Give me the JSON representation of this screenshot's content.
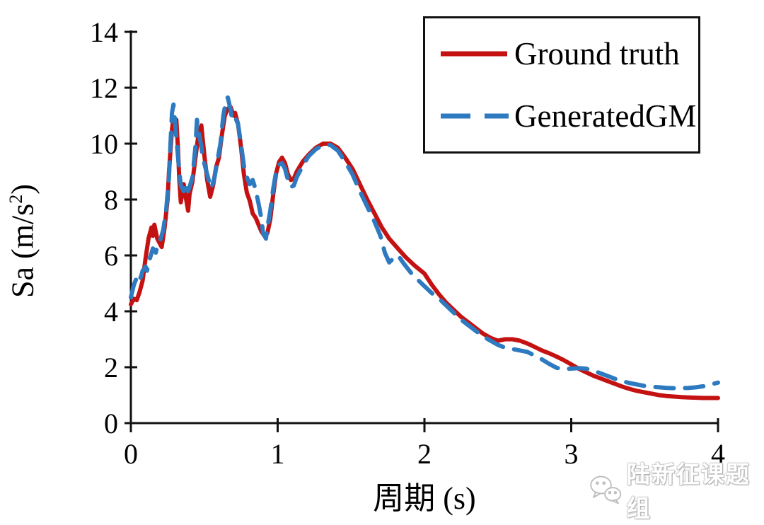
{
  "figure": {
    "background": "#ffffff"
  },
  "axes": {
    "x_label": "周期 (s)",
    "y_label_prefix": "Sa (m/s",
    "y_label_sup": "2",
    "y_label_suffix": ")",
    "y_label_full": "Sa (m/s²)"
  },
  "legend": {
    "entries": [
      {
        "label": "Ground truth",
        "color": "#c41212",
        "dash": "solid"
      },
      {
        "label": "GeneratedGM",
        "color": "#2d7ac0",
        "dash": "dashed"
      }
    ]
  },
  "watermark": {
    "icon": "wechat-icon",
    "text": "陆新征课题组"
  },
  "chart_data": {
    "type": "line",
    "title": "",
    "xlabel": "周期 (s)",
    "ylabel": "Sa (m/s²)",
    "xlim": [
      0,
      4
    ],
    "ylim": [
      0,
      14
    ],
    "xticks": [
      0,
      1,
      2,
      3,
      4
    ],
    "yticks": [
      0,
      2,
      4,
      6,
      8,
      10,
      12,
      14
    ],
    "grid": false,
    "legend_position": "top-right",
    "series": [
      {
        "name": "Ground truth",
        "color": "#c41212",
        "line_style": "solid",
        "line_width": 6,
        "points": [
          [
            0,
            4.25
          ],
          [
            0.02,
            4.45
          ],
          [
            0.04,
            4.4
          ],
          [
            0.06,
            4.7
          ],
          [
            0.08,
            5.1
          ],
          [
            0.1,
            5.9
          ],
          [
            0.12,
            6.6
          ],
          [
            0.14,
            7.0
          ],
          [
            0.15,
            6.7
          ],
          [
            0.16,
            7.1
          ],
          [
            0.18,
            6.6
          ],
          [
            0.2,
            6.4
          ],
          [
            0.21,
            6.3
          ],
          [
            0.23,
            7.0
          ],
          [
            0.25,
            8.0
          ],
          [
            0.26,
            9.0
          ],
          [
            0.28,
            10.5
          ],
          [
            0.29,
            10.9
          ],
          [
            0.3,
            10.5
          ],
          [
            0.31,
            10.85
          ],
          [
            0.32,
            9.9
          ],
          [
            0.33,
            8.7
          ],
          [
            0.34,
            7.9
          ],
          [
            0.36,
            8.55
          ],
          [
            0.37,
            8.2
          ],
          [
            0.39,
            7.6
          ],
          [
            0.4,
            8.2
          ],
          [
            0.42,
            8.65
          ],
          [
            0.44,
            9.5
          ],
          [
            0.46,
            10.3
          ],
          [
            0.48,
            10.65
          ],
          [
            0.5,
            9.6
          ],
          [
            0.52,
            8.7
          ],
          [
            0.54,
            8.1
          ],
          [
            0.56,
            8.5
          ],
          [
            0.58,
            9.15
          ],
          [
            0.6,
            9.5
          ],
          [
            0.62,
            10.3
          ],
          [
            0.64,
            11.0
          ],
          [
            0.66,
            11.25
          ],
          [
            0.68,
            11.3
          ],
          [
            0.7,
            11.0
          ],
          [
            0.71,
            11.1
          ],
          [
            0.73,
            10.7
          ],
          [
            0.75,
            9.9
          ],
          [
            0.77,
            8.9
          ],
          [
            0.79,
            8.25
          ],
          [
            0.81,
            7.95
          ],
          [
            0.83,
            7.5
          ],
          [
            0.85,
            7.35
          ],
          [
            0.87,
            7.1
          ],
          [
            0.89,
            6.85
          ],
          [
            0.91,
            6.7
          ],
          [
            0.93,
            6.8
          ],
          [
            0.95,
            7.3
          ],
          [
            0.97,
            8.2
          ],
          [
            0.99,
            8.95
          ],
          [
            1.01,
            9.35
          ],
          [
            1.03,
            9.5
          ],
          [
            1.05,
            9.3
          ],
          [
            1.07,
            8.9
          ],
          [
            1.09,
            8.7
          ],
          [
            1.11,
            8.75
          ],
          [
            1.13,
            9.0
          ],
          [
            1.17,
            9.35
          ],
          [
            1.21,
            9.6
          ],
          [
            1.26,
            9.85
          ],
          [
            1.31,
            10.0
          ],
          [
            1.36,
            10.0
          ],
          [
            1.41,
            9.85
          ],
          [
            1.46,
            9.5
          ],
          [
            1.51,
            9.1
          ],
          [
            1.56,
            8.55
          ],
          [
            1.61,
            8.0
          ],
          [
            1.66,
            7.5
          ],
          [
            1.71,
            7.0
          ],
          [
            1.76,
            6.6
          ],
          [
            1.81,
            6.3
          ],
          [
            1.87,
            5.95
          ],
          [
            1.93,
            5.65
          ],
          [
            2.0,
            5.35
          ],
          [
            2.05,
            4.95
          ],
          [
            2.1,
            4.6
          ],
          [
            2.15,
            4.3
          ],
          [
            2.2,
            4.05
          ],
          [
            2.25,
            3.8
          ],
          [
            2.3,
            3.6
          ],
          [
            2.35,
            3.4
          ],
          [
            2.4,
            3.2
          ],
          [
            2.45,
            3.05
          ],
          [
            2.5,
            2.95
          ],
          [
            2.55,
            3.0
          ],
          [
            2.6,
            3.0
          ],
          [
            2.65,
            2.95
          ],
          [
            2.7,
            2.85
          ],
          [
            2.75,
            2.73
          ],
          [
            2.8,
            2.6
          ],
          [
            2.85,
            2.5
          ],
          [
            2.9,
            2.38
          ],
          [
            2.95,
            2.25
          ],
          [
            3.0,
            2.1
          ],
          [
            3.05,
            1.95
          ],
          [
            3.1,
            1.82
          ],
          [
            3.15,
            1.7
          ],
          [
            3.2,
            1.6
          ],
          [
            3.25,
            1.5
          ],
          [
            3.3,
            1.4
          ],
          [
            3.35,
            1.3
          ],
          [
            3.4,
            1.22
          ],
          [
            3.45,
            1.15
          ],
          [
            3.5,
            1.1
          ],
          [
            3.55,
            1.05
          ],
          [
            3.6,
            1.0
          ],
          [
            3.65,
            0.97
          ],
          [
            3.7,
            0.95
          ],
          [
            3.75,
            0.93
          ],
          [
            3.8,
            0.92
          ],
          [
            3.85,
            0.91
          ],
          [
            3.9,
            0.9
          ],
          [
            3.95,
            0.9
          ],
          [
            4,
            0.9
          ]
        ]
      },
      {
        "name": "GeneratedGM",
        "color": "#2d7ac0",
        "line_style": "dashed",
        "line_width": 6,
        "points": [
          [
            0,
            4.5
          ],
          [
            0.02,
            4.95
          ],
          [
            0.04,
            5.2
          ],
          [
            0.05,
            5.05
          ],
          [
            0.07,
            5.25
          ],
          [
            0.08,
            5.45
          ],
          [
            0.1,
            5.6
          ],
          [
            0.11,
            5.45
          ],
          [
            0.13,
            5.9
          ],
          [
            0.15,
            6.25
          ],
          [
            0.17,
            6.1
          ],
          [
            0.18,
            6.35
          ],
          [
            0.2,
            6.55
          ],
          [
            0.22,
            6.9
          ],
          [
            0.24,
            7.6
          ],
          [
            0.26,
            8.8
          ],
          [
            0.27,
            10.0
          ],
          [
            0.28,
            11.1
          ],
          [
            0.29,
            11.4
          ],
          [
            0.3,
            10.8
          ],
          [
            0.31,
            10.2
          ],
          [
            0.33,
            9.0
          ],
          [
            0.34,
            8.5
          ],
          [
            0.36,
            8.3
          ],
          [
            0.37,
            8.6
          ],
          [
            0.39,
            8.3
          ],
          [
            0.4,
            8.45
          ],
          [
            0.42,
            8.8
          ],
          [
            0.44,
            9.9
          ],
          [
            0.45,
            10.85
          ],
          [
            0.46,
            10.5
          ],
          [
            0.48,
            9.9
          ],
          [
            0.49,
            9.5
          ],
          [
            0.51,
            9.1
          ],
          [
            0.53,
            8.7
          ],
          [
            0.55,
            8.4
          ],
          [
            0.57,
            8.8
          ],
          [
            0.59,
            9.4
          ],
          [
            0.61,
            10.0
          ],
          [
            0.63,
            11.0
          ],
          [
            0.65,
            11.6
          ],
          [
            0.66,
            11.65
          ],
          [
            0.68,
            11.2
          ],
          [
            0.69,
            10.85
          ],
          [
            0.71,
            10.95
          ],
          [
            0.73,
            10.7
          ],
          [
            0.75,
            10.0
          ],
          [
            0.77,
            9.2
          ],
          [
            0.79,
            8.8
          ],
          [
            0.81,
            8.55
          ],
          [
            0.83,
            8.7
          ],
          [
            0.85,
            8.35
          ],
          [
            0.87,
            7.85
          ],
          [
            0.89,
            7.3
          ],
          [
            0.9,
            6.8
          ],
          [
            0.92,
            6.6
          ],
          [
            0.93,
            7.0
          ],
          [
            0.95,
            7.6
          ],
          [
            0.97,
            8.4
          ],
          [
            0.99,
            9.0
          ],
          [
            1.01,
            9.25
          ],
          [
            1.03,
            9.3
          ],
          [
            1.05,
            9.1
          ],
          [
            1.07,
            8.7
          ],
          [
            1.09,
            8.45
          ],
          [
            1.11,
            8.5
          ],
          [
            1.13,
            8.8
          ],
          [
            1.17,
            9.2
          ],
          [
            1.21,
            9.55
          ],
          [
            1.26,
            9.8
          ],
          [
            1.31,
            9.95
          ],
          [
            1.36,
            9.95
          ],
          [
            1.41,
            9.75
          ],
          [
            1.46,
            9.35
          ],
          [
            1.51,
            8.9
          ],
          [
            1.56,
            8.3
          ],
          [
            1.61,
            7.75
          ],
          [
            1.66,
            7.2
          ],
          [
            1.7,
            6.7
          ],
          [
            1.73,
            6.1
          ],
          [
            1.76,
            5.75
          ],
          [
            1.79,
            5.9
          ],
          [
            1.82,
            6.0
          ],
          [
            1.86,
            5.7
          ],
          [
            1.92,
            5.3
          ],
          [
            2.0,
            4.9
          ],
          [
            2.05,
            4.65
          ],
          [
            2.1,
            4.45
          ],
          [
            2.15,
            4.2
          ],
          [
            2.2,
            3.95
          ],
          [
            2.25,
            3.7
          ],
          [
            2.3,
            3.5
          ],
          [
            2.35,
            3.3
          ],
          [
            2.4,
            3.1
          ],
          [
            2.45,
            2.95
          ],
          [
            2.5,
            2.8
          ],
          [
            2.55,
            2.7
          ],
          [
            2.6,
            2.65
          ],
          [
            2.65,
            2.6
          ],
          [
            2.7,
            2.55
          ],
          [
            2.75,
            2.42
          ],
          [
            2.8,
            2.28
          ],
          [
            2.85,
            2.12
          ],
          [
            2.9,
            1.98
          ],
          [
            2.95,
            1.93
          ],
          [
            3.0,
            1.95
          ],
          [
            3.05,
            1.97
          ],
          [
            3.1,
            1.95
          ],
          [
            3.15,
            1.88
          ],
          [
            3.2,
            1.78
          ],
          [
            3.25,
            1.68
          ],
          [
            3.3,
            1.58
          ],
          [
            3.35,
            1.5
          ],
          [
            3.4,
            1.43
          ],
          [
            3.45,
            1.38
          ],
          [
            3.5,
            1.33
          ],
          [
            3.55,
            1.3
          ],
          [
            3.6,
            1.28
          ],
          [
            3.65,
            1.26
          ],
          [
            3.7,
            1.25
          ],
          [
            3.75,
            1.25
          ],
          [
            3.8,
            1.26
          ],
          [
            3.85,
            1.28
          ],
          [
            3.9,
            1.32
          ],
          [
            3.95,
            1.38
          ],
          [
            4,
            1.45
          ]
        ]
      }
    ]
  }
}
